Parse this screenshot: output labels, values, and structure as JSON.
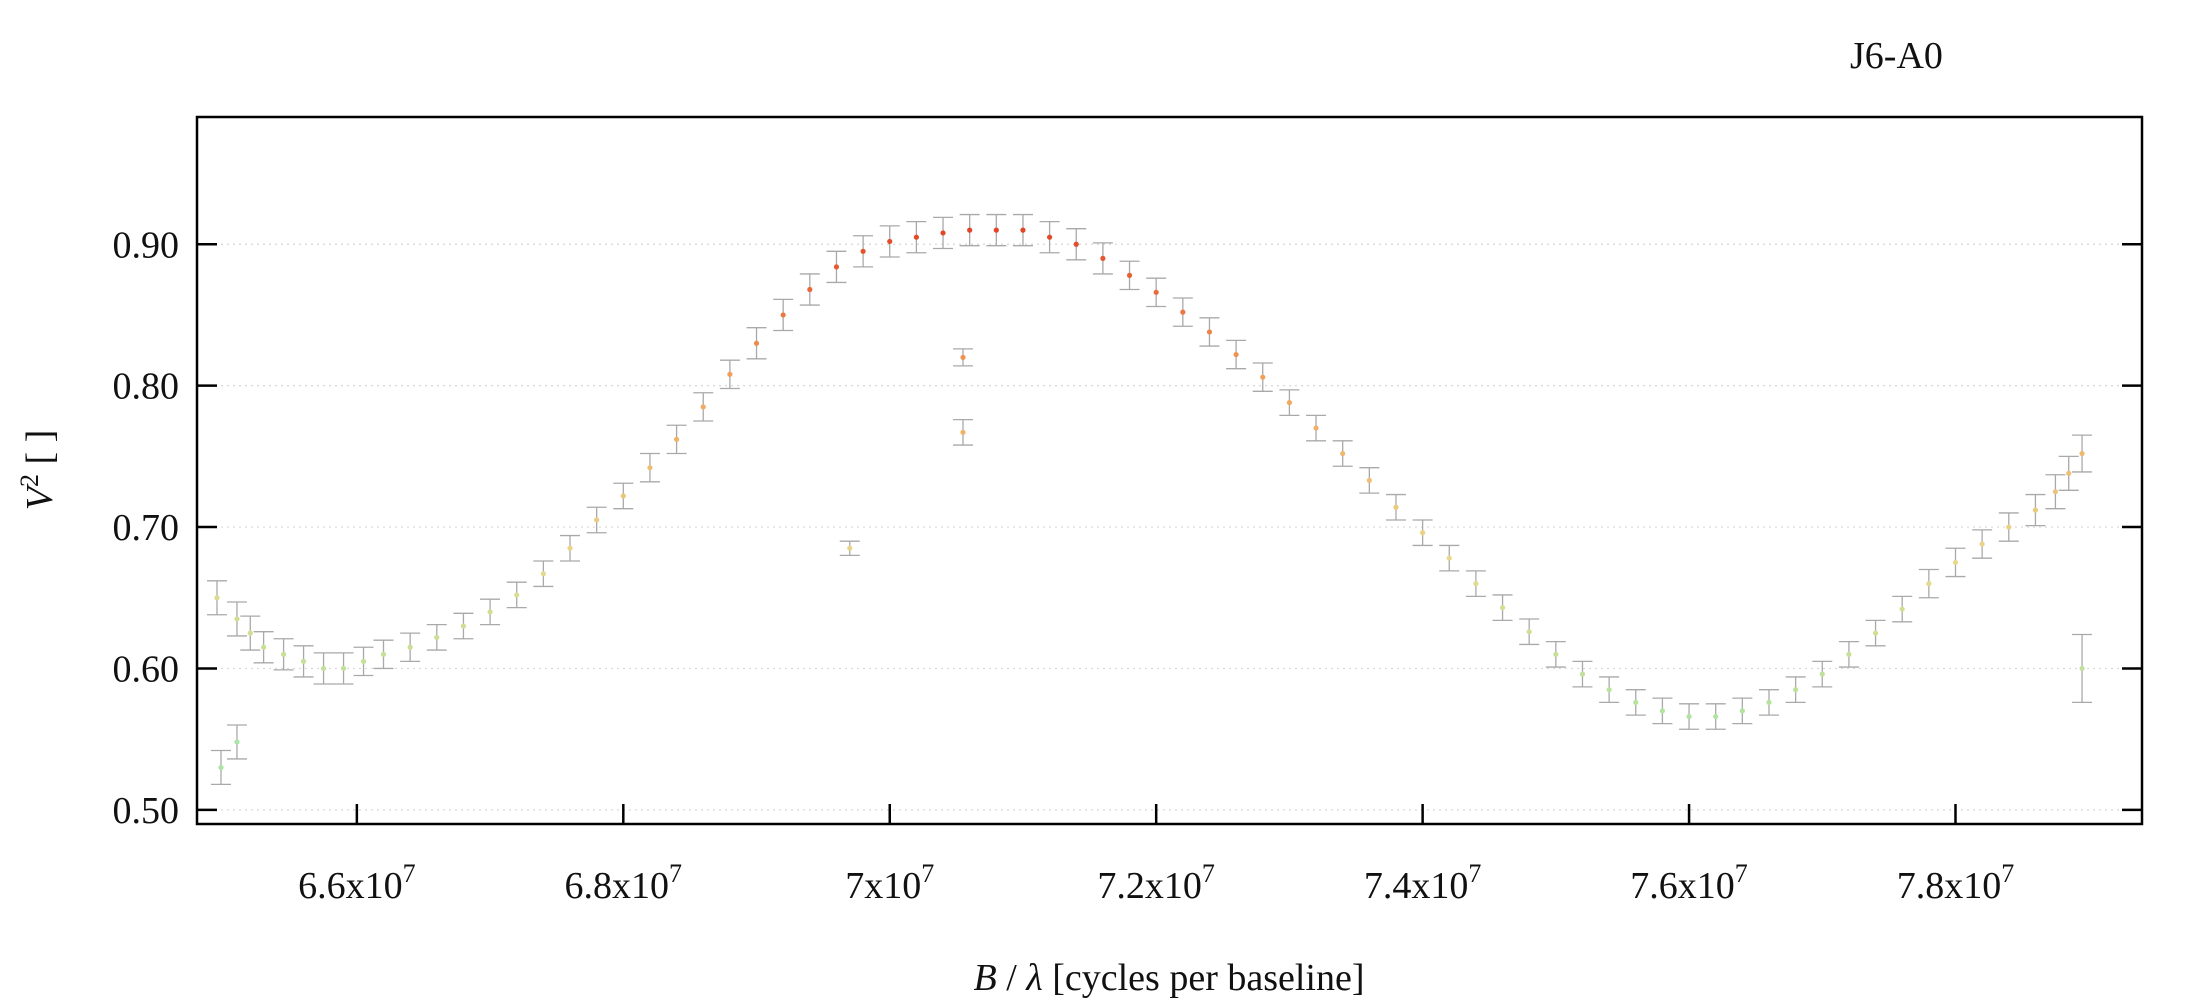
{
  "chart_data": {
    "type": "scatter",
    "title": "J6-A0",
    "xlabel": {
      "var": "B",
      "sep": " / ",
      "sym": "λ",
      "unit": " [cycles per baseline]"
    },
    "ylabel": {
      "var": "V",
      "sup": "2",
      "unit": " [ ]"
    },
    "xlim": [
      64800000,
      79400000
    ],
    "ylim": [
      0.49,
      0.99
    ],
    "grid": true,
    "x_ticks": [
      {
        "value": 66000000,
        "mant": "6.6x10",
        "exp": "7"
      },
      {
        "value": 68000000,
        "mant": "6.8x10",
        "exp": "7"
      },
      {
        "value": 70000000,
        "mant": "7x10",
        "exp": "7"
      },
      {
        "value": 72000000,
        "mant": "7.2x10",
        "exp": "7"
      },
      {
        "value": 74000000,
        "mant": "7.4x10",
        "exp": "7"
      },
      {
        "value": 76000000,
        "mant": "7.6x10",
        "exp": "7"
      },
      {
        "value": 78000000,
        "mant": "7.8x10",
        "exp": "7"
      }
    ],
    "y_ticks": [
      {
        "value": 0.5,
        "label": "0.50"
      },
      {
        "value": 0.6,
        "label": "0.60"
      },
      {
        "value": 0.7,
        "label": "0.70"
      },
      {
        "value": 0.8,
        "label": "0.80"
      },
      {
        "value": 0.9,
        "label": "0.90"
      }
    ],
    "color_scale": {
      "low_value": 0.55,
      "high_value": 0.93,
      "stops": [
        "#a8e6a3",
        "#e8d98c",
        "#f2a25a",
        "#e0331c"
      ]
    },
    "error_bar_color": "#a9a9a9",
    "series": [
      {
        "x": [
          64950000,
          65100000,
          65200000,
          65300000,
          65450000,
          65600000,
          65750000,
          65900000,
          66050000,
          66200000,
          66400000,
          66600000,
          66800000,
          67000000,
          67200000,
          67400000,
          67600000,
          67800000,
          68000000,
          68200000,
          68400000,
          68600000,
          68800000,
          69000000,
          69200000,
          69400000,
          69600000,
          69800000,
          70000000,
          70200000,
          70400000,
          70600000,
          70800000,
          71000000,
          71200000,
          71400000,
          71600000,
          71800000,
          72000000,
          72200000,
          72400000,
          72600000,
          72800000,
          73000000,
          73200000,
          73400000,
          73600000,
          73800000,
          74000000,
          74200000,
          74400000,
          74600000,
          74800000,
          75000000,
          75200000,
          75400000,
          75600000,
          75800000,
          76000000,
          76200000,
          76400000,
          76600000,
          76800000,
          77000000,
          77200000,
          77400000,
          77600000,
          77800000,
          78000000,
          78200000,
          78400000,
          78600000,
          78750000,
          78850000,
          78950000
        ],
        "y": [
          0.65,
          0.635,
          0.625,
          0.615,
          0.61,
          0.605,
          0.6,
          0.6,
          0.605,
          0.61,
          0.615,
          0.622,
          0.63,
          0.64,
          0.652,
          0.667,
          0.685,
          0.705,
          0.722,
          0.742,
          0.762,
          0.785,
          0.808,
          0.83,
          0.85,
          0.868,
          0.884,
          0.895,
          0.902,
          0.905,
          0.908,
          0.91,
          0.91,
          0.91,
          0.905,
          0.9,
          0.89,
          0.878,
          0.866,
          0.852,
          0.838,
          0.822,
          0.806,
          0.788,
          0.77,
          0.752,
          0.733,
          0.714,
          0.696,
          0.678,
          0.66,
          0.643,
          0.626,
          0.61,
          0.596,
          0.585,
          0.576,
          0.57,
          0.566,
          0.566,
          0.57,
          0.576,
          0.585,
          0.596,
          0.61,
          0.625,
          0.642,
          0.66,
          0.675,
          0.688,
          0.7,
          0.712,
          0.725,
          0.738,
          0.752
        ],
        "yerr": [
          0.012,
          0.012,
          0.012,
          0.011,
          0.011,
          0.011,
          0.011,
          0.011,
          0.01,
          0.01,
          0.01,
          0.009,
          0.009,
          0.009,
          0.009,
          0.009,
          0.009,
          0.009,
          0.009,
          0.01,
          0.01,
          0.01,
          0.01,
          0.011,
          0.011,
          0.011,
          0.011,
          0.011,
          0.011,
          0.011,
          0.011,
          0.011,
          0.011,
          0.011,
          0.011,
          0.011,
          0.011,
          0.01,
          0.01,
          0.01,
          0.01,
          0.01,
          0.01,
          0.009,
          0.009,
          0.009,
          0.009,
          0.009,
          0.009,
          0.009,
          0.009,
          0.009,
          0.009,
          0.009,
          0.009,
          0.009,
          0.009,
          0.009,
          0.009,
          0.009,
          0.009,
          0.009,
          0.009,
          0.009,
          0.009,
          0.009,
          0.009,
          0.01,
          0.01,
          0.01,
          0.01,
          0.011,
          0.012,
          0.012,
          0.013
        ]
      }
    ],
    "outliers": [
      {
        "x": 64980000,
        "y": 0.53,
        "yerr": 0.012
      },
      {
        "x": 65100000,
        "y": 0.548,
        "yerr": 0.012
      },
      {
        "x": 69700000,
        "y": 0.685,
        "yerr": 0.005
      },
      {
        "x": 70550000,
        "y": 0.767,
        "yerr": 0.009
      },
      {
        "x": 70550000,
        "y": 0.82,
        "yerr": 0.006
      },
      {
        "x": 78950000,
        "y": 0.6,
        "yerr": 0.024
      }
    ]
  }
}
